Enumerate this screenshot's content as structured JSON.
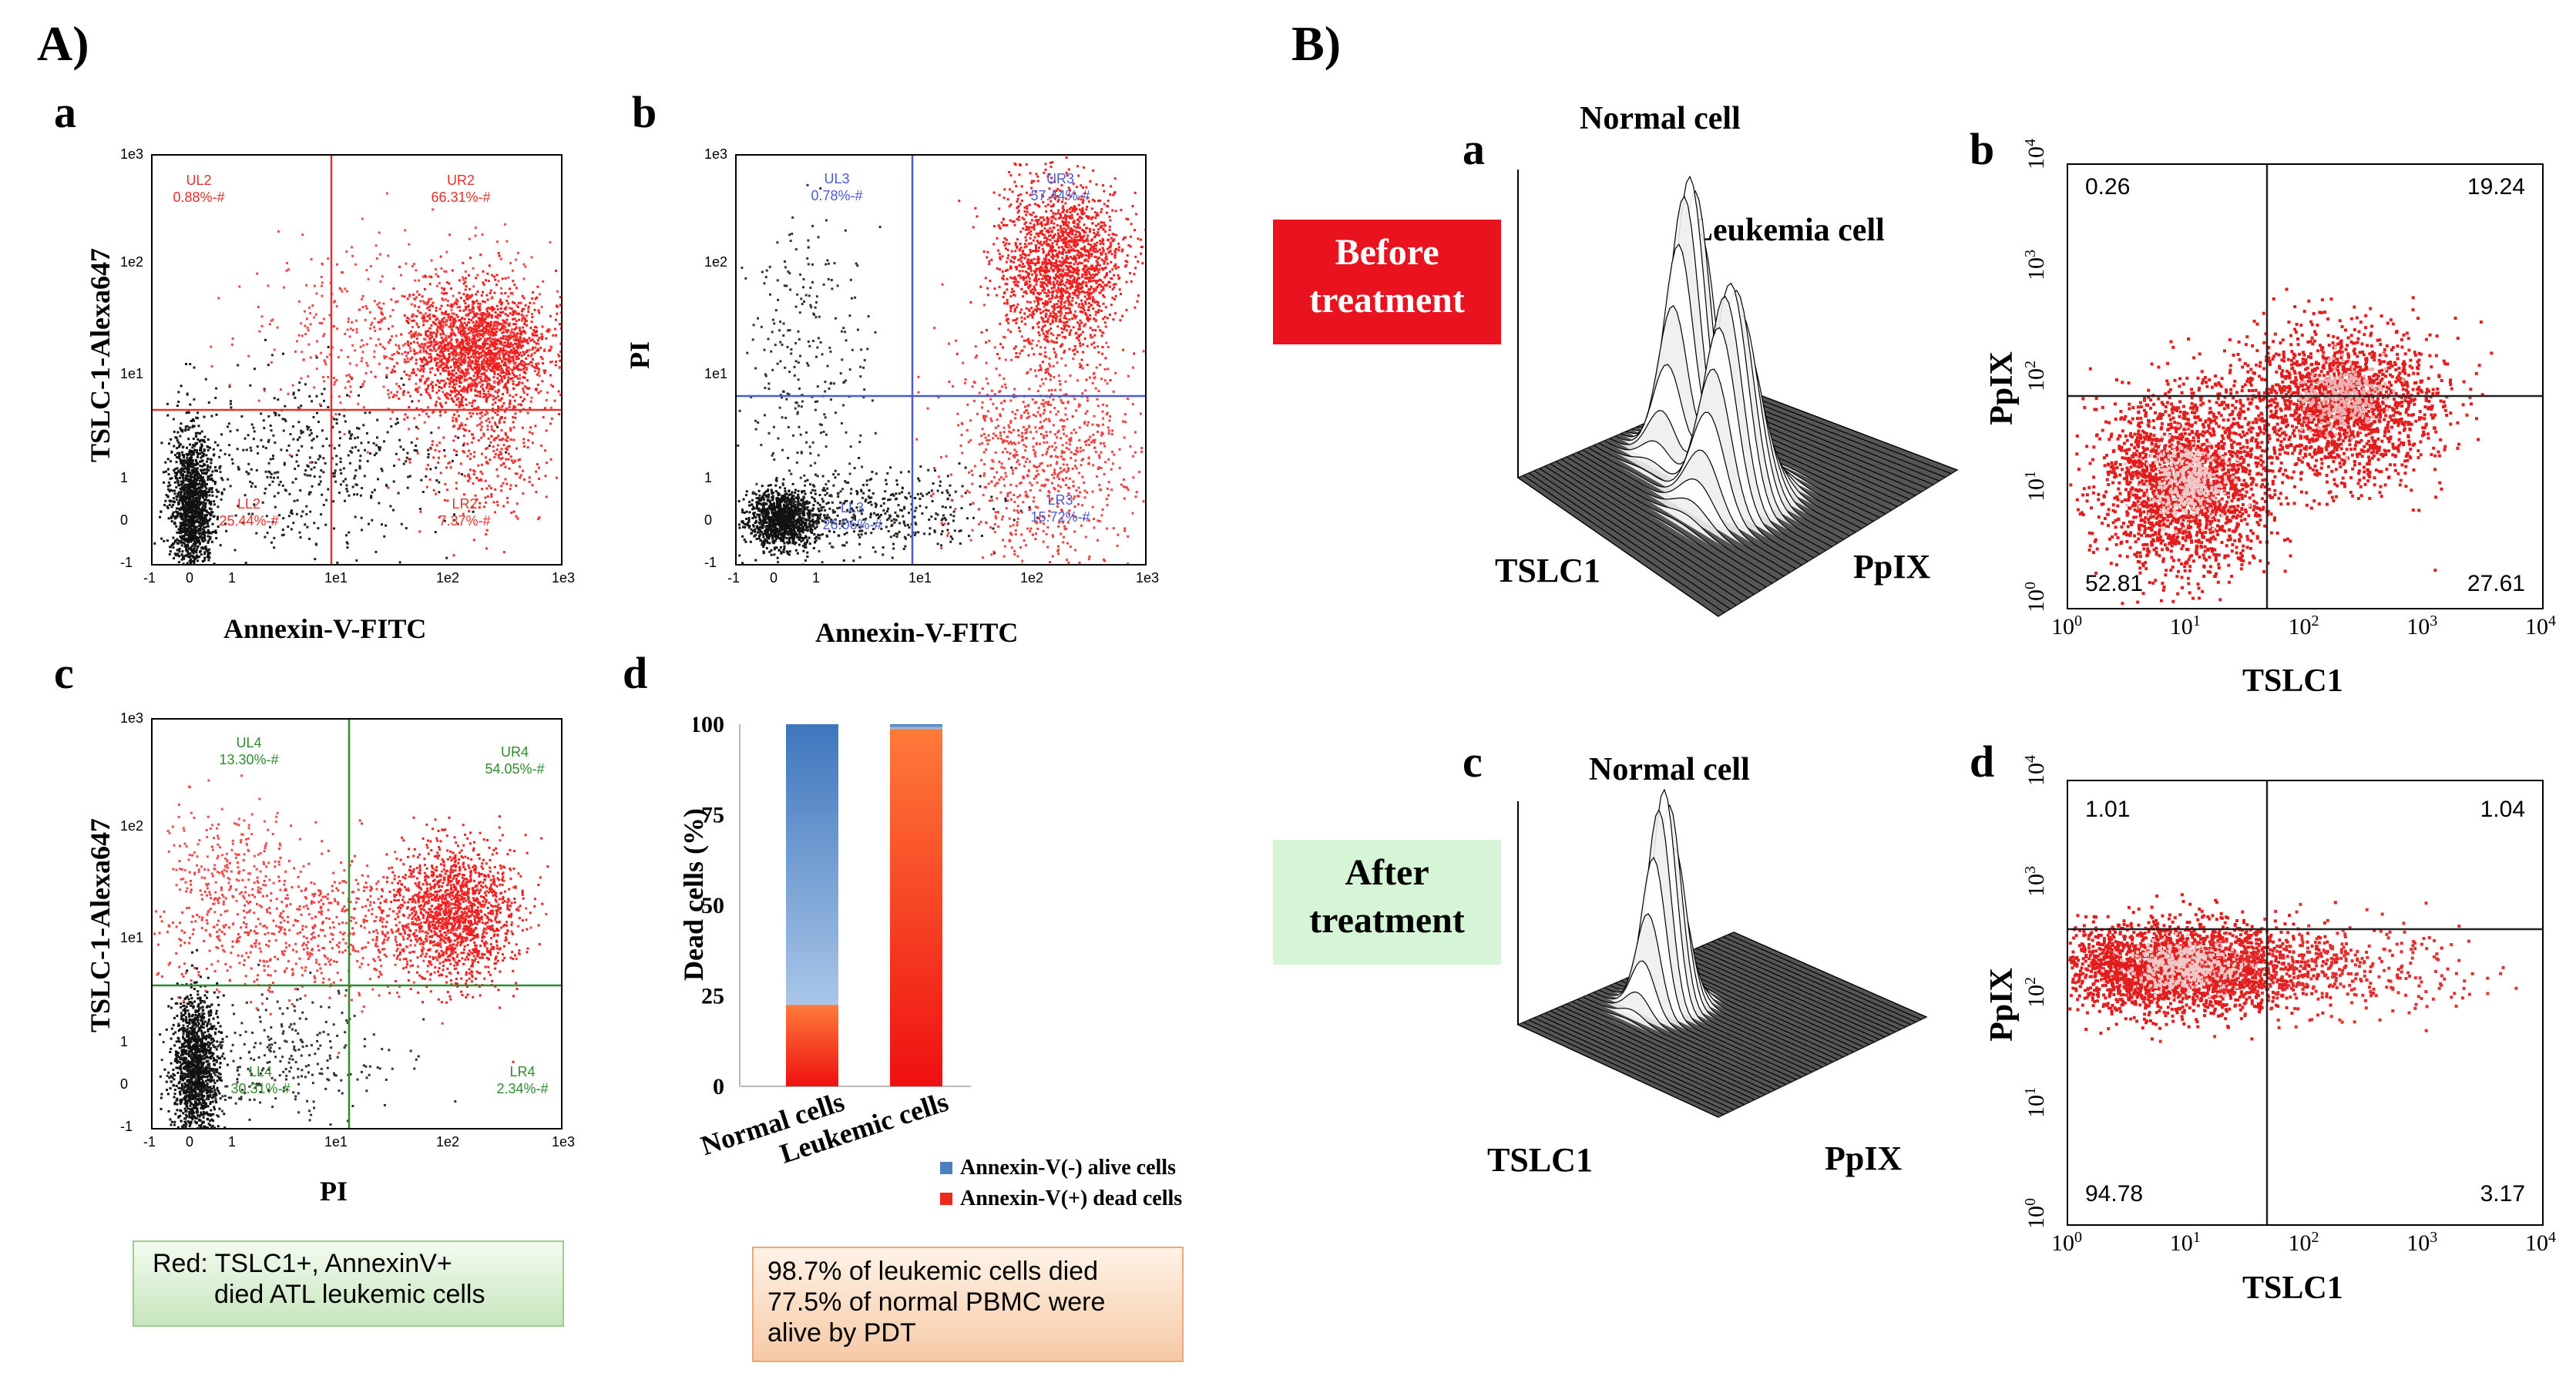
{
  "sectionA": {
    "label": "A)",
    "panels": {
      "a": {
        "letter": "a",
        "xlabel": "Annexin-V-FITC",
        "ylabel": "TSLC-1-Alexa647",
        "color": "#e8302a",
        "quadrants": {
          "UL": "UL2\n0.88%-#",
          "UR": "UR2\n66.31%-#",
          "LL": "LL2\n25.44%-#",
          "LR": "LR2\n7.37%-#"
        },
        "xticks": [
          "-1",
          "0",
          "1",
          "1e1",
          "1e2",
          "1e3"
        ],
        "yticks": [
          "1e3",
          "1e2",
          "1e1",
          "1",
          "0",
          "-1"
        ]
      },
      "b": {
        "letter": "b",
        "xlabel": "Annexin-V-FITC",
        "ylabel": "PI",
        "color": "#4a5bd6",
        "quadrants": {
          "UL": "UL3\n0.78%-#",
          "UR": "UR3\n57.44%-#",
          "LL": "LL3\n26.06%-#",
          "LR": "LR3\n15.72%-#"
        },
        "xticks": [
          "-1",
          "0",
          "1",
          "1e1",
          "1e2",
          "1e3"
        ],
        "yticks": [
          "1e3",
          "1e2",
          "1e1",
          "1",
          "0",
          "-1"
        ]
      },
      "c": {
        "letter": "c",
        "xlabel": "PI",
        "ylabel": "TSLC-1-Alexa647",
        "color": "#2e8b2e",
        "quadrants": {
          "UL": "UL4\n13.30%-#",
          "UR": "UR4\n54.05%-#",
          "LL": "LL4\n30.31%-#",
          "LR": "LR4\n2.34%-#"
        },
        "xticks": [
          "-1",
          "0",
          "1",
          "1e1",
          "1e2",
          "1e3"
        ],
        "yticks": [
          "1e3",
          "1e2",
          "1e1",
          "1",
          "0",
          "-1"
        ]
      },
      "d": {
        "letter": "d",
        "ylabel": "Dead cells (%)",
        "categories": [
          "Normal cells",
          "Leukemic cells"
        ],
        "legend": [
          "Annexin-V(-) alive cells",
          "Annexin-V(+) dead cells"
        ],
        "yticks": [
          "100",
          "75",
          "50",
          "25",
          "0"
        ]
      }
    },
    "note_green": [
      "Red: TSLC1+, AnnexinV+",
      "died ATL leukemic cells"
    ],
    "note_orange": [
      "98.7% of leukemic cells died",
      "77.5% of normal PBMC were",
      "alive by PDT"
    ]
  },
  "sectionB": {
    "label": "B)",
    "before_label": [
      "Before",
      "treatment"
    ],
    "after_label": [
      "After",
      "treatment"
    ],
    "panel_a": {
      "letter": "a",
      "peak1": "Normal cell",
      "peak2": "Leukemia cell",
      "x_axis": "TSLC1",
      "y_axis": "PpIX"
    },
    "panel_c": {
      "letter": "c",
      "peak1": "Normal cell",
      "x_axis": "TSLC1",
      "y_axis": "PpIX"
    },
    "panel_b": {
      "letter": "b",
      "xlabel": "TSLC1",
      "ylabel": "PpIX",
      "UL": "0.26",
      "UR": "19.24",
      "LL": "52.81",
      "LR": "27.61"
    },
    "panel_d": {
      "letter": "d",
      "xlabel": "TSLC1",
      "ylabel": "PpIX",
      "UL": "1.01",
      "UR": "1.04",
      "LL": "94.78",
      "LR": "3.17"
    },
    "log_ticks": [
      "10",
      "0",
      "1",
      "2",
      "3",
      "4"
    ]
  },
  "chart_data": {
    "type": "bar",
    "categories": [
      "Normal cells",
      "Leukemic cells"
    ],
    "series": [
      {
        "name": "Annexin-V(-) alive cells",
        "values": [
          77.5,
          1.3
        ]
      },
      {
        "name": "Annexin-V(+) dead cells",
        "values": [
          22.5,
          98.7
        ]
      }
    ],
    "ylabel": "Dead cells (%)",
    "ylim": [
      0,
      100
    ],
    "stacked": true,
    "legend_position": "bottom-right"
  }
}
